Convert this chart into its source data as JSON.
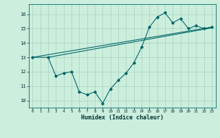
{
  "xlabel": "Humidex (Indice chaleur)",
  "bg_color": "#cceedd",
  "line_color": "#006666",
  "xlim": [
    -0.5,
    23.5
  ],
  "ylim": [
    9.5,
    16.7
  ],
  "yticks": [
    10,
    11,
    12,
    13,
    14,
    15,
    16
  ],
  "xticks": [
    0,
    1,
    2,
    3,
    4,
    5,
    6,
    7,
    8,
    9,
    10,
    11,
    12,
    13,
    14,
    15,
    16,
    17,
    18,
    19,
    20,
    21,
    22,
    23
  ],
  "line1_x": [
    0,
    23
  ],
  "line1_y": [
    13.0,
    15.1
  ],
  "line2_x": [
    2,
    23
  ],
  "line2_y": [
    13.0,
    15.05
  ],
  "line3_x": [
    0,
    2,
    3,
    4,
    5,
    6,
    7,
    8,
    9,
    10,
    11,
    12,
    13,
    14,
    15,
    16,
    17,
    18,
    19,
    20,
    21,
    22,
    23
  ],
  "line3_y": [
    13.0,
    13.0,
    11.7,
    11.9,
    12.0,
    10.6,
    10.4,
    10.6,
    9.8,
    10.8,
    11.4,
    11.9,
    12.6,
    13.7,
    15.1,
    15.8,
    16.1,
    15.4,
    15.7,
    15.0,
    15.2,
    15.0,
    15.1
  ]
}
